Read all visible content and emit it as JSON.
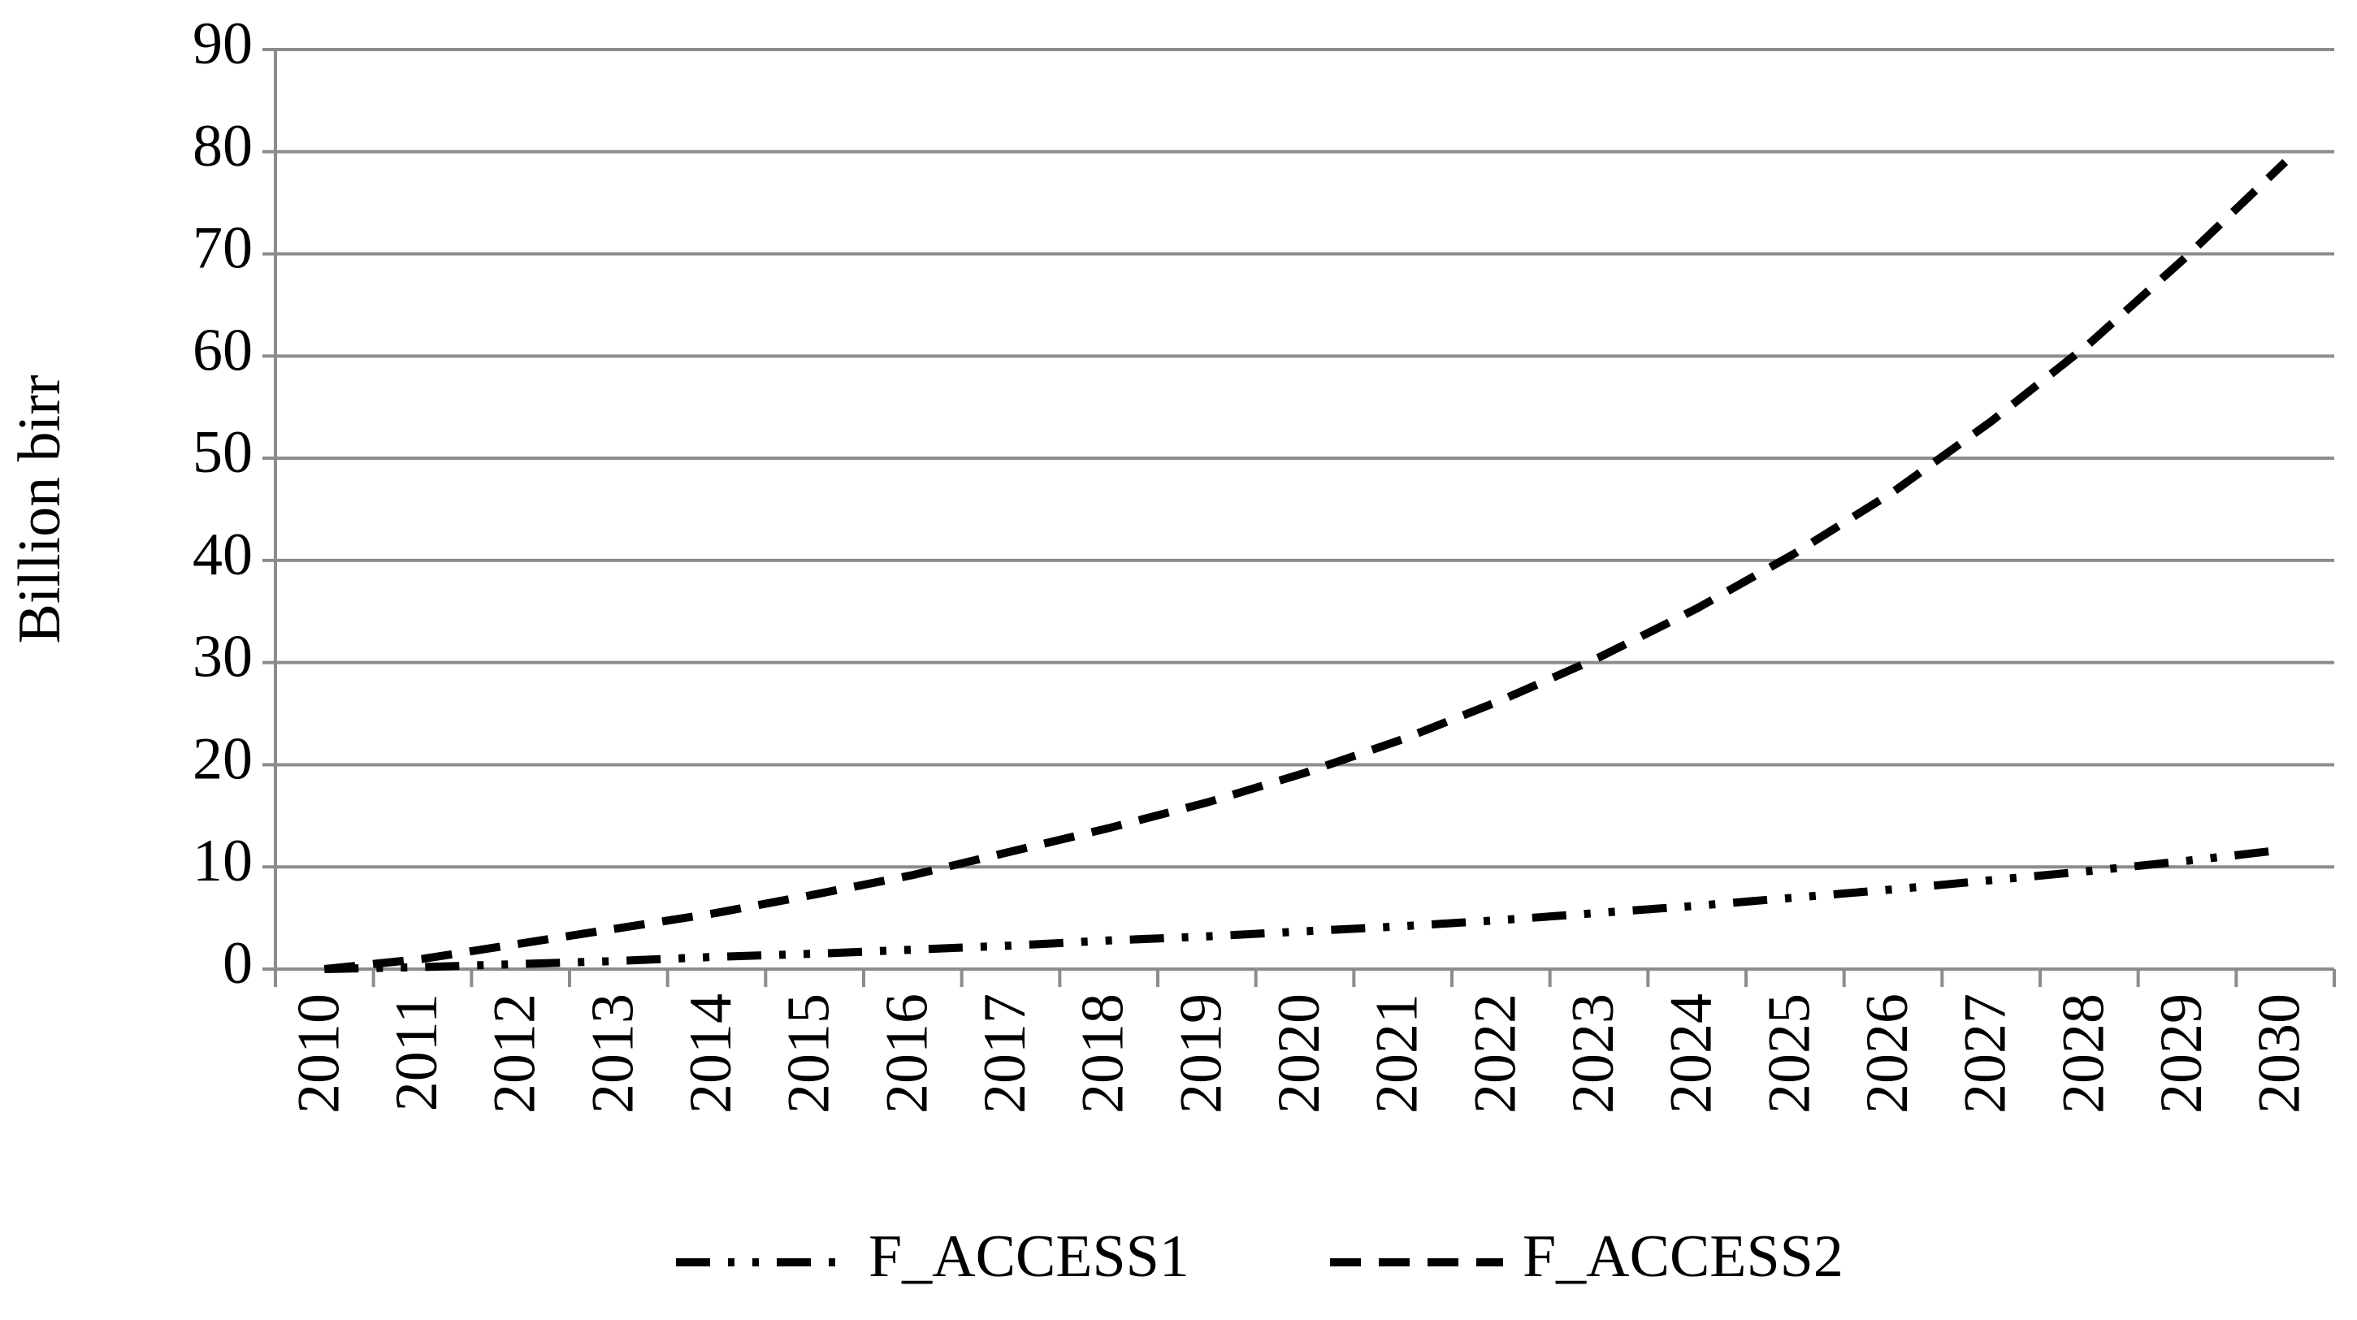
{
  "chart_data": {
    "type": "line",
    "y_label": "Billion birr",
    "categories": [
      "2010",
      "2011",
      "2012",
      "2013",
      "2014",
      "2015",
      "2016",
      "2017",
      "2018",
      "2019",
      "2020",
      "2021",
      "2022",
      "2023",
      "2024",
      "2025",
      "2026",
      "2027",
      "2028",
      "2029",
      "2030"
    ],
    "series": [
      {
        "name": "F_ACCESS1",
        "color": "#000000",
        "values": [
          0,
          0.2,
          0.5,
          0.8,
          1.2,
          1.5,
          1.9,
          2.3,
          2.8,
          3.2,
          3.7,
          4.2,
          4.8,
          5.5,
          6.2,
          7.0,
          7.8,
          8.7,
          9.6,
          10.6,
          11.7
        ]
      },
      {
        "name": "F_ACCESS2",
        "color": "#000000",
        "values": [
          0,
          1,
          2.5,
          4,
          5.5,
          7.3,
          9.2,
          11.5,
          13.8,
          16.3,
          19.2,
          22.5,
          26.3,
          30.5,
          35.3,
          40.7,
          46.7,
          53.6,
          61.2,
          69.8,
          79
        ]
      }
    ],
    "ylim": [
      0,
      90
    ],
    "yticks": [
      0,
      10,
      20,
      30,
      40,
      50,
      60,
      70,
      80,
      90
    ],
    "grid": true,
    "legend": "bottom"
  }
}
